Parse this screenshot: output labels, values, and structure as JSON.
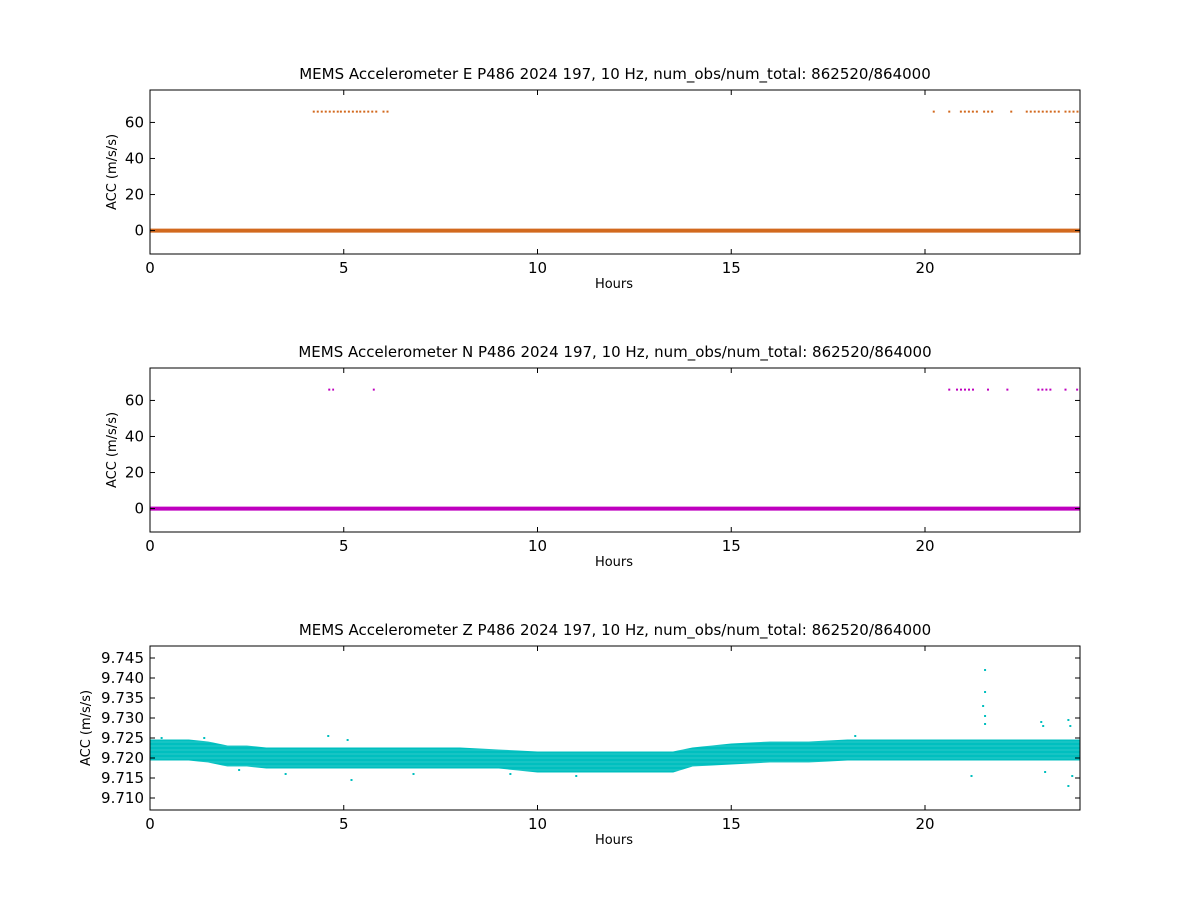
{
  "chart_data": [
    {
      "type": "scatter",
      "title": "MEMS Accelerometer E P486 2024 197, 10 Hz, num_obs/num_total: 862520/864000",
      "xlabel": "Hours",
      "ylabel": "ACC (m/s/s)",
      "xlim": [
        0,
        24
      ],
      "ylim": [
        -13,
        78
      ],
      "xticks": [
        0,
        5,
        10,
        15,
        20
      ],
      "yticks": [
        0,
        20,
        40,
        60
      ],
      "color": "#d2691e",
      "baseline": {
        "value": 0,
        "x": [
          0,
          24
        ]
      },
      "outlier_value": 66,
      "outlier_segments": [
        [
          4.2,
          4.9
        ],
        [
          4.9,
          5.4
        ],
        [
          5.4,
          5.9
        ],
        [
          6.0,
          6.2
        ],
        [
          20.2,
          20.3
        ],
        [
          20.6,
          20.7
        ],
        [
          20.9,
          21.4
        ],
        [
          21.5,
          21.8
        ],
        [
          22.2,
          22.3
        ],
        [
          22.6,
          23.5
        ],
        [
          23.6,
          24.0
        ]
      ]
    },
    {
      "type": "scatter",
      "title": "MEMS Accelerometer N P486 2024 197, 10 Hz, num_obs/num_total: 862520/864000",
      "xlabel": "Hours",
      "ylabel": "ACC (m/s/s)",
      "xlim": [
        0,
        24
      ],
      "ylim": [
        -13,
        78
      ],
      "xticks": [
        0,
        5,
        10,
        15,
        20
      ],
      "yticks": [
        0,
        20,
        40,
        60
      ],
      "color": "#bf00bf",
      "baseline": {
        "value": 0,
        "x": [
          0,
          24
        ]
      },
      "outlier_value": 66,
      "outlier_segments": [
        [
          4.6,
          4.75
        ],
        [
          5.75,
          5.8
        ],
        [
          20.6,
          20.7
        ],
        [
          20.8,
          21.3
        ],
        [
          21.6,
          21.7
        ],
        [
          22.1,
          22.2
        ],
        [
          22.9,
          23.3
        ],
        [
          23.6,
          23.7
        ],
        [
          23.9,
          24.0
        ]
      ]
    },
    {
      "type": "scatter",
      "title": "MEMS Accelerometer Z P486 2024 197, 10 Hz, num_obs/num_total: 862520/864000",
      "xlabel": "Hours",
      "ylabel": "ACC (m/s/s)",
      "xlim": [
        0,
        24
      ],
      "ylim": [
        9.707,
        9.748
      ],
      "xticks": [
        0,
        5,
        10,
        15,
        20
      ],
      "yticks": [
        9.71,
        9.715,
        9.72,
        9.725,
        9.73,
        9.735,
        9.74,
        9.745
      ],
      "ytick_labels": [
        "9.710",
        "9.715",
        "9.720",
        "9.725",
        "9.730",
        "9.735",
        "9.740",
        "9.745"
      ],
      "color": "#00bfbf",
      "band": {
        "x": [
          0,
          0.5,
          1,
          1.5,
          2,
          2.5,
          3,
          4,
          5,
          6,
          7,
          8,
          9,
          10,
          11,
          12,
          13,
          13.5,
          14,
          15,
          16,
          17,
          18,
          19,
          20,
          21,
          22,
          23,
          24
        ],
        "low": [
          9.7195,
          9.7195,
          9.7195,
          9.719,
          9.718,
          9.718,
          9.7175,
          9.7175,
          9.7175,
          9.7175,
          9.7175,
          9.7175,
          9.7175,
          9.7165,
          9.7165,
          9.7165,
          9.7165,
          9.7165,
          9.718,
          9.7185,
          9.719,
          9.719,
          9.7195,
          9.7195,
          9.7195,
          9.7195,
          9.7195,
          9.7195,
          9.7195
        ],
        "high": [
          9.7245,
          9.7245,
          9.7245,
          9.724,
          9.723,
          9.723,
          9.7225,
          9.7225,
          9.7225,
          9.7225,
          9.7225,
          9.7225,
          9.722,
          9.7215,
          9.7215,
          9.7215,
          9.7215,
          9.7215,
          9.7225,
          9.7235,
          9.724,
          9.724,
          9.7245,
          9.7245,
          9.7245,
          9.7245,
          9.7245,
          9.7245,
          9.7245
        ]
      },
      "spikes": [
        {
          "x": 21.55,
          "y": 9.742
        },
        {
          "x": 21.55,
          "y": 9.7365
        },
        {
          "x": 21.5,
          "y": 9.733
        },
        {
          "x": 21.55,
          "y": 9.7305
        },
        {
          "x": 21.55,
          "y": 9.7285
        },
        {
          "x": 23.0,
          "y": 9.729
        },
        {
          "x": 23.05,
          "y": 9.728
        },
        {
          "x": 23.7,
          "y": 9.7295
        },
        {
          "x": 23.75,
          "y": 9.728
        },
        {
          "x": 21.2,
          "y": 9.7155
        },
        {
          "x": 23.1,
          "y": 9.7165
        },
        {
          "x": 23.7,
          "y": 9.713
        },
        {
          "x": 23.8,
          "y": 9.7155
        },
        {
          "x": 5.2,
          "y": 9.7145
        },
        {
          "x": 4.6,
          "y": 9.7255
        },
        {
          "x": 5.1,
          "y": 9.7245
        },
        {
          "x": 3.5,
          "y": 9.716
        },
        {
          "x": 6.8,
          "y": 9.716
        },
        {
          "x": 18.2,
          "y": 9.7255
        },
        {
          "x": 1.4,
          "y": 9.725
        },
        {
          "x": 0.3,
          "y": 9.725
        },
        {
          "x": 9.3,
          "y": 9.716
        },
        {
          "x": 11.0,
          "y": 9.7155
        },
        {
          "x": 2.3,
          "y": 9.717
        }
      ]
    }
  ]
}
